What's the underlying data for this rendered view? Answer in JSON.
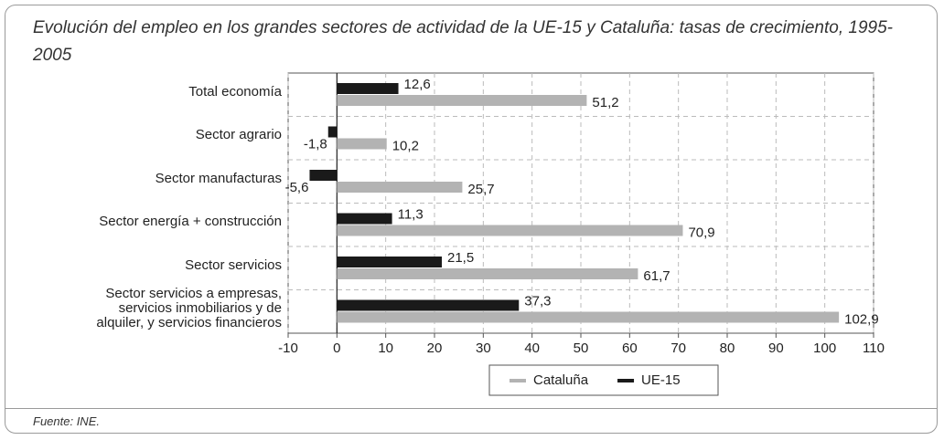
{
  "chart_data": {
    "type": "bar",
    "orientation": "horizontal",
    "title": "Evolución del empleo en los grandes sectores de actividad de la UE-15 y Cataluña: tasas de crecimiento, 1995-2005",
    "source": "Fuente: INE.",
    "categories": [
      "Total economía",
      "Sector agrario",
      "Sector manufacturas",
      "Sector energía + construcción",
      "Sector servicios",
      "Sector servicios a empresas,\nservicios inmobiliarios y de\nalquiler, y servicios financieros"
    ],
    "series": [
      {
        "name": "Cataluña",
        "color": "#b3b3b3",
        "values": [
          51.2,
          10.2,
          25.7,
          70.9,
          61.7,
          102.9
        ],
        "value_labels": [
          "51,2",
          "10,2",
          "25,7",
          "70,9",
          "61,7",
          "102,9"
        ]
      },
      {
        "name": "UE-15",
        "color": "#1a1a1a",
        "values": [
          12.6,
          -1.8,
          -5.6,
          11.3,
          21.5,
          37.3
        ],
        "value_labels": [
          "12,6",
          "-1,8",
          "-5,6",
          "11,3",
          "21,5",
          "37,3"
        ]
      }
    ],
    "xlim": [
      -10,
      110
    ],
    "xticks": [
      -10,
      0,
      10,
      20,
      30,
      40,
      50,
      60,
      70,
      80,
      90,
      100,
      110
    ],
    "grid": true
  }
}
